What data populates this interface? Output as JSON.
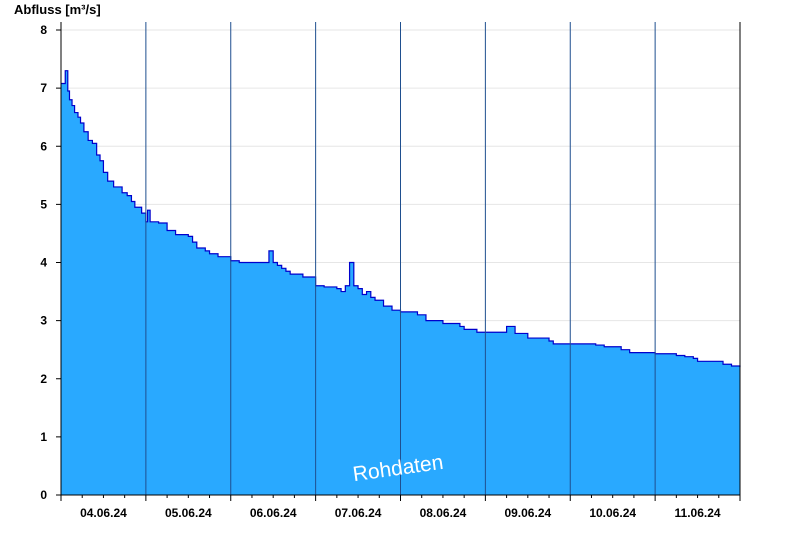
{
  "chart_data": {
    "type": "area",
    "ylabel": "Abfluss [m³/s]",
    "ylim": [
      0,
      8
    ],
    "yticks": [
      0,
      1,
      2,
      3,
      4,
      5,
      6,
      7,
      8
    ],
    "day_labels": [
      "04.06.24",
      "05.06.24",
      "06.06.24",
      "07.06.24",
      "08.06.24",
      "09.06.24",
      "10.06.24",
      "11.06.24"
    ],
    "xlim_days": [
      0,
      8
    ],
    "watermark": "Rohdaten",
    "grid": "horizontal",
    "colors": {
      "fill": "#29a9ff",
      "line": "#0000cc",
      "day_separator": "#1f4f8f",
      "grid": "#e6e6e6"
    },
    "series": [
      {
        "x_days": [
          0.0,
          0.05,
          0.08,
          0.1,
          0.13,
          0.16,
          0.2,
          0.23,
          0.27,
          0.32,
          0.37,
          0.42,
          0.46,
          0.5,
          0.55,
          0.62,
          0.72,
          0.78,
          0.83,
          0.87,
          0.95,
          1.0,
          1.02,
          1.05,
          1.15,
          1.25,
          1.35,
          1.5,
          1.55,
          1.6,
          1.7,
          1.75,
          1.85,
          2.0,
          2.1,
          2.3,
          2.45,
          2.5,
          2.55,
          2.6,
          2.65,
          2.7,
          2.75,
          2.85,
          3.0,
          3.1,
          3.25,
          3.3,
          3.35,
          3.4,
          3.45,
          3.5,
          3.55,
          3.6,
          3.65,
          3.7,
          3.8,
          3.9,
          4.0,
          4.2,
          4.3,
          4.5,
          4.6,
          4.7,
          4.75,
          4.8,
          4.9,
          4.95,
          5.0,
          5.1,
          5.25,
          5.35,
          5.5,
          5.6,
          5.75,
          5.8,
          6.0,
          6.2,
          6.3,
          6.4,
          6.6,
          6.7,
          6.9,
          7.0,
          7.25,
          7.35,
          7.45,
          7.5,
          7.6,
          7.7,
          7.8,
          7.9,
          8.0
        ],
        "y": [
          7.08,
          7.3,
          6.95,
          6.8,
          6.7,
          6.58,
          6.5,
          6.4,
          6.25,
          6.1,
          6.05,
          5.85,
          5.75,
          5.55,
          5.4,
          5.3,
          5.2,
          5.15,
          5.05,
          4.95,
          4.85,
          4.7,
          4.9,
          4.7,
          4.68,
          4.55,
          4.48,
          4.45,
          4.35,
          4.25,
          4.2,
          4.15,
          4.1,
          4.03,
          4.0,
          4.0,
          4.2,
          4.0,
          3.95,
          3.9,
          3.85,
          3.8,
          3.8,
          3.75,
          3.6,
          3.58,
          3.55,
          3.5,
          3.6,
          4.0,
          3.6,
          3.55,
          3.45,
          3.5,
          3.4,
          3.35,
          3.25,
          3.18,
          3.15,
          3.1,
          3.0,
          2.95,
          2.95,
          2.9,
          2.85,
          2.85,
          2.8,
          2.8,
          2.8,
          2.8,
          2.9,
          2.78,
          2.7,
          2.7,
          2.65,
          2.6,
          2.6,
          2.6,
          2.58,
          2.55,
          2.5,
          2.45,
          2.45,
          2.43,
          2.4,
          2.38,
          2.35,
          2.3,
          2.3,
          2.3,
          2.25,
          2.22,
          2.2
        ]
      }
    ]
  }
}
